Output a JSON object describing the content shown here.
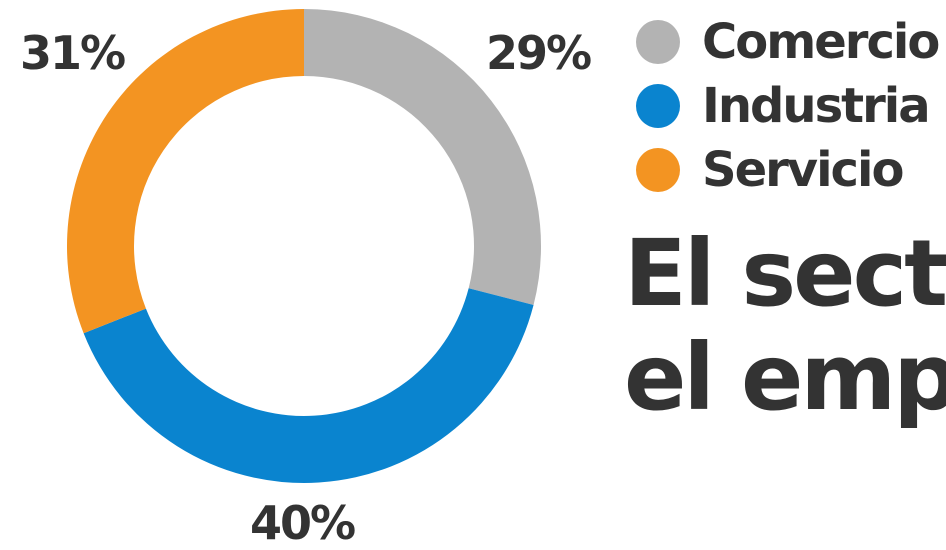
{
  "chart_data": {
    "type": "pie",
    "variant": "donut",
    "categories": [
      "Comercio",
      "Industria",
      "Servicio"
    ],
    "values": [
      29,
      40,
      31
    ],
    "labels": [
      "29%",
      "40%",
      "31%"
    ],
    "colors": [
      "#b3b3b3",
      "#0a84cf",
      "#f39422"
    ],
    "legend_placement": "right"
  },
  "headline": {
    "line1": "El sect",
    "line2": "el emp"
  }
}
